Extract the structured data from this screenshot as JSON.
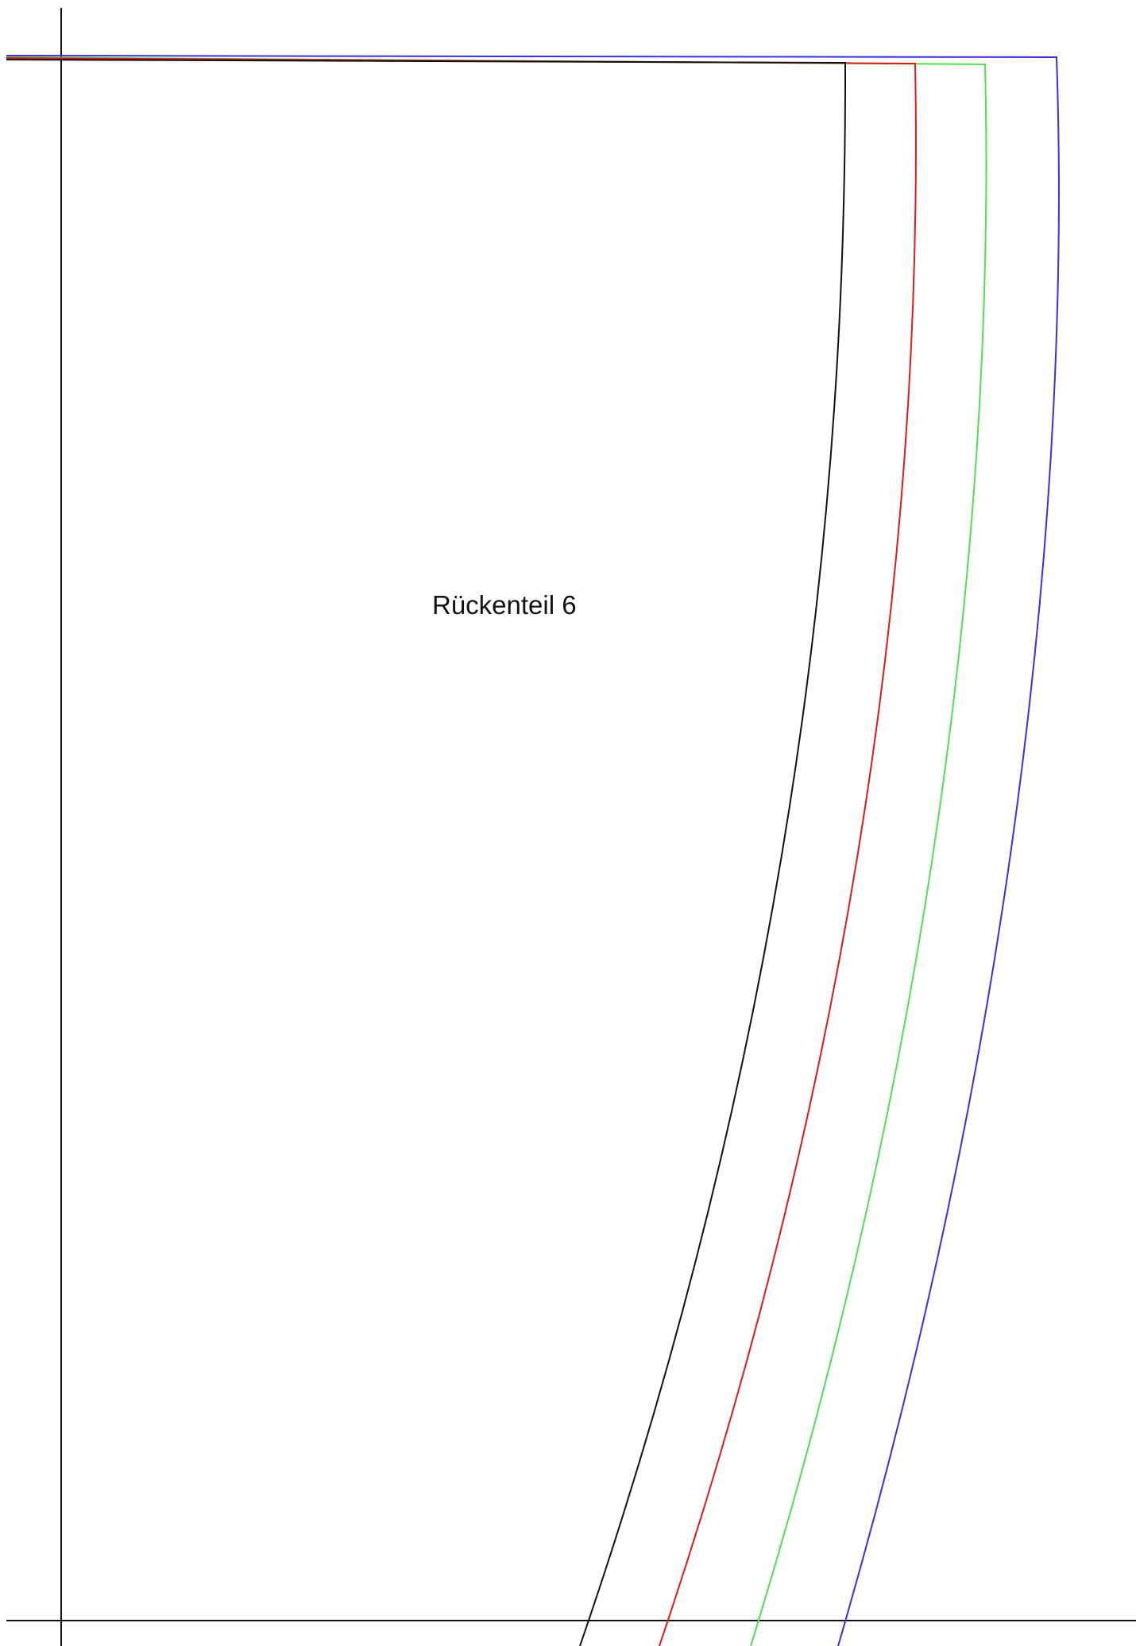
{
  "piece": {
    "label": "Rückenteil 6"
  },
  "outlines": [
    {
      "name": "outline-black",
      "color": "#111111"
    },
    {
      "name": "outline-red",
      "color": "#e01818"
    },
    {
      "name": "outline-green",
      "color": "#4ee04e"
    },
    {
      "name": "outline-blue",
      "color": "#3a2ee6"
    }
  ],
  "reference_line_color": "#111111"
}
